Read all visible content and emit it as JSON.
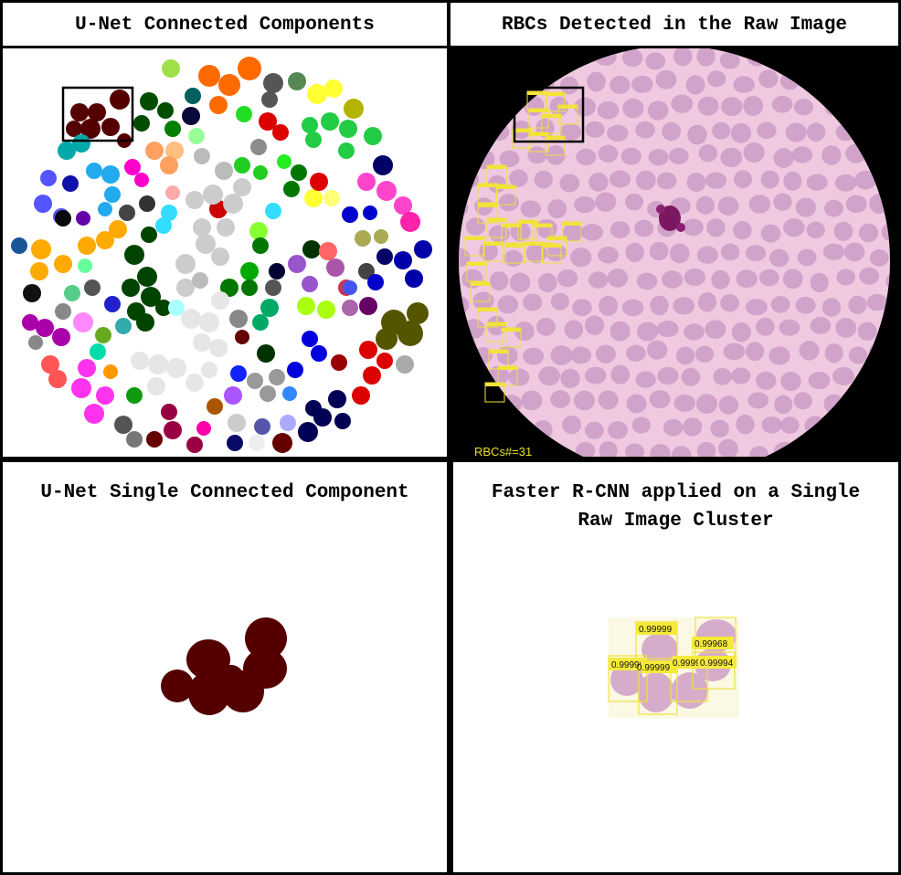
{
  "panels": {
    "top_left": {
      "title": "U-Net Connected Components"
    },
    "top_right": {
      "title": "RBCs Detected in the Raw Image",
      "count_label": "RBCs#=31"
    },
    "bottom_left": {
      "title": "U-Net Single Connected Component"
    },
    "bottom_right": {
      "title_line1": "Faster R-CNN applied on a Single",
      "title_line2": "Raw Image Cluster",
      "detections": [
        {
          "score": "0.99999"
        },
        {
          "score": "0.99968"
        },
        {
          "score": "0.99999"
        },
        {
          "score": "0.99999"
        },
        {
          "score": "0.9999"
        },
        {
          "score": "0.99994"
        }
      ]
    }
  },
  "colors": {
    "cluster_fill": "#550000",
    "detection_box": "#f2e23a",
    "rbc_fill": "#c99ac4",
    "smear_background": "#eec9e0",
    "count_text": "#e8e01a"
  }
}
